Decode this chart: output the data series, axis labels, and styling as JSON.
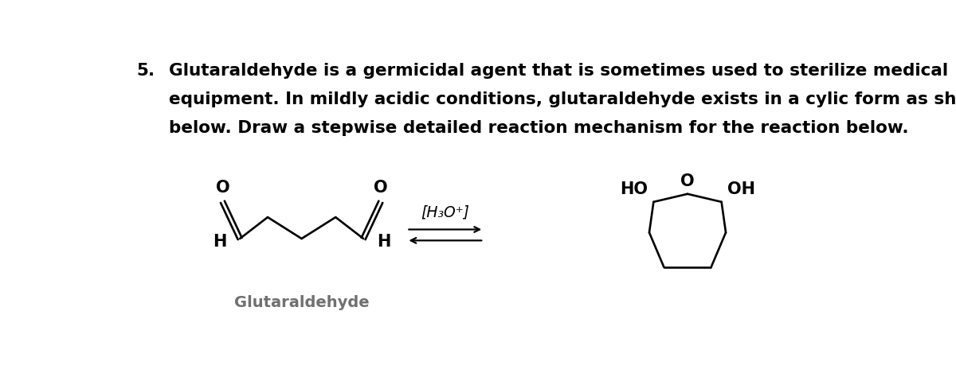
{
  "title_number": "5.",
  "text_lines": [
    "Glutaraldehyde is a germicidal agent that is sometimes used to sterilize medical",
    "equipment. In mildly acidic conditions, glutaraldehyde exists in a cylic form as shown",
    "below. Draw a stepwise detailed reaction mechanism for the reaction below."
  ],
  "label_glutaraldehyde": "Glutaraldehyde",
  "reagent_label": "[H₃O⁺]",
  "label_HO": "HO",
  "label_O_ring": "O",
  "label_OH": "OH",
  "label_H_left": "H",
  "label_H_right": "H",
  "label_O_left": "O",
  "label_O_right": "O",
  "bg_color": "#ffffff",
  "text_color": "#000000",
  "structure_color": "#000000",
  "label_color_gray": "#707070",
  "fontsize_text": 15.5,
  "fontsize_structure": 15,
  "fontsize_number": 15.5,
  "fontsize_glutaraldehyde": 14
}
